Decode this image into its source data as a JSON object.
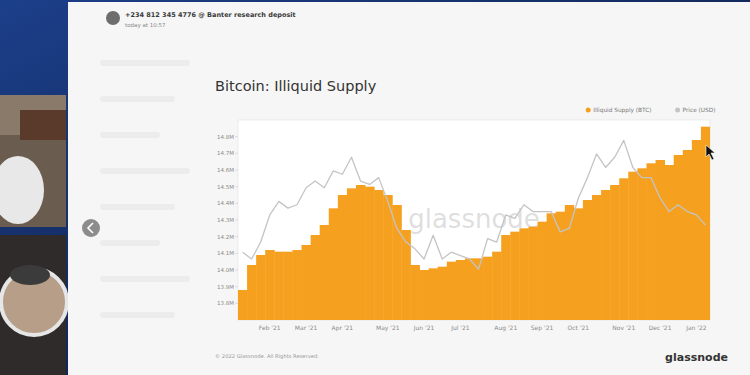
{
  "message": {
    "sender": "+234 812 345 4776 @ Banter research deposit",
    "time": "today at 10:57"
  },
  "watermark": "glassnode",
  "footer": {
    "copyright": "© 2022 Glassnode. All Rights Reserved.",
    "logo": "glassnode"
  },
  "chart_data": {
    "type": "bar",
    "title": "Bitcoin: Illiquid Supply",
    "categories": [
      null,
      null,
      null,
      "Feb '21",
      null,
      null,
      null,
      "Mar '21",
      null,
      null,
      null,
      "Apr '21",
      null,
      null,
      null,
      null,
      "May '21",
      null,
      null,
      null,
      "Jun '21",
      null,
      null,
      null,
      "Jul '21",
      null,
      null,
      null,
      null,
      "Aug '21",
      null,
      null,
      null,
      "Sep '21",
      null,
      null,
      null,
      "Oct '21",
      null,
      null,
      null,
      null,
      "Nov '21",
      null,
      null,
      null,
      "Dec '21",
      null,
      null,
      null,
      "Jan '22",
      null
    ],
    "series": [
      {
        "name": "Illiquid Supply (BTC)",
        "type": "bar",
        "color": "#f5a01e",
        "values": [
          13.88,
          14.03,
          14.09,
          14.12,
          14.11,
          14.11,
          14.12,
          14.15,
          14.21,
          14.27,
          14.37,
          14.45,
          14.49,
          14.51,
          14.5,
          14.48,
          14.45,
          14.39,
          14.24,
          14.03,
          14.0,
          14.01,
          14.02,
          14.05,
          14.06,
          14.07,
          14.07,
          14.08,
          14.11,
          14.21,
          14.23,
          14.25,
          14.26,
          14.29,
          14.34,
          14.35,
          14.39,
          14.37,
          14.42,
          14.45,
          14.48,
          14.51,
          14.55,
          14.59,
          14.61,
          14.64,
          14.66,
          14.63,
          14.69,
          14.72,
          14.78,
          14.86
        ]
      },
      {
        "name": "Price (USD)",
        "type": "line",
        "color": "#c4c4c4",
        "axis": "y2",
        "values": [
          35000,
          33000,
          38000,
          46000,
          50000,
          48000,
          49000,
          54000,
          56000,
          54000,
          59000,
          58000,
          63000,
          56000,
          55000,
          57000,
          50000,
          42000,
          38000,
          36000,
          33000,
          40000,
          33000,
          35000,
          34000,
          33000,
          30000,
          39000,
          38000,
          46000,
          45000,
          49000,
          47000,
          47000,
          47000,
          41000,
          42000,
          51000,
          57000,
          64000,
          60000,
          63000,
          68000,
          60000,
          57000,
          57000,
          51000,
          47000,
          49000,
          47000,
          46000,
          43000
        ]
      }
    ],
    "ylim": [
      13.7,
      14.9
    ],
    "yticks": [
      {
        "value": 13.8,
        "label": "13.8M"
      },
      {
        "value": 13.9,
        "label": "13.9M"
      },
      {
        "value": 14.0,
        "label": "14.0M"
      },
      {
        "value": 14.1,
        "label": "14.1M"
      },
      {
        "value": 14.2,
        "label": "14.2M"
      },
      {
        "value": 14.3,
        "label": "14.3M"
      },
      {
        "value": 14.4,
        "label": "14.4M"
      },
      {
        "value": 14.5,
        "label": "14.5M"
      },
      {
        "value": 14.6,
        "label": "14.6M"
      },
      {
        "value": 14.7,
        "label": "14.7M"
      },
      {
        "value": 14.8,
        "label": "14.8M"
      }
    ],
    "y2lim": [
      15000,
      74000
    ],
    "grid": false,
    "legend": "top-right"
  }
}
